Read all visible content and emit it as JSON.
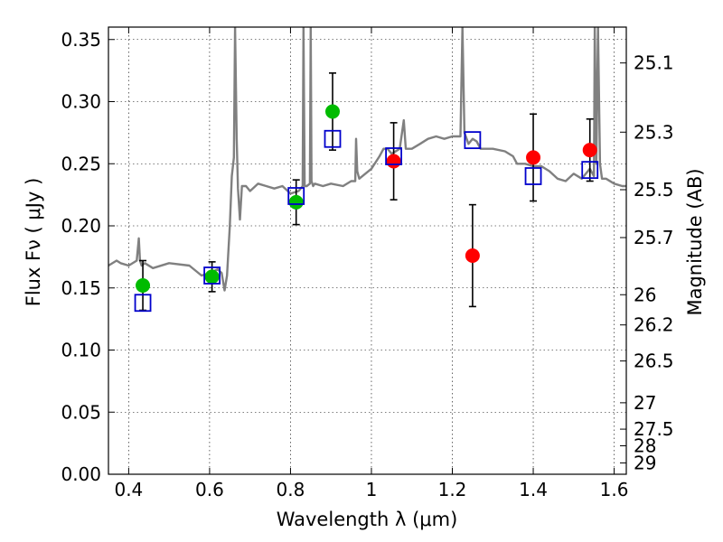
{
  "chart_data": {
    "type": "scatter",
    "title": "",
    "xlabel": "Wavelength  λ (μm)",
    "ylabel": "Flux  Fν  ( μJy )",
    "y2label": "Magnitude (AB)",
    "xlim": [
      0.35,
      1.63
    ],
    "ylim": [
      0.0,
      0.36
    ],
    "grid": true,
    "x_ticks": [
      0.4,
      0.6,
      0.8,
      1.0,
      1.2,
      1.4,
      1.6
    ],
    "x_tick_labels": [
      "0.4",
      "0.6",
      "0.8",
      "1",
      "1.2",
      "1.4",
      "1.6"
    ],
    "y_ticks": [
      0.0,
      0.05,
      0.1,
      0.15,
      0.2,
      0.25,
      0.3,
      0.35
    ],
    "y_tick_labels": [
      "0.00",
      "0.05",
      "0.10",
      "0.15",
      "0.20",
      "0.25",
      "0.30",
      "0.35"
    ],
    "y2_ticks": [
      25.1,
      25.3,
      25.5,
      25.7,
      26,
      26.2,
      26.5,
      27,
      27.5,
      28,
      29
    ],
    "y2_tick_labels": [
      "25.1",
      "25.3",
      "25.5",
      "25.7",
      "26",
      "26.2",
      "26.5",
      "27",
      "27.5",
      "28",
      "29"
    ],
    "series": [
      {
        "kind": "points",
        "marker": "circle",
        "color": "#00bb00",
        "x": [
          0.435,
          0.606,
          0.814,
          0.904
        ],
        "y": [
          0.152,
          0.159,
          0.219,
          0.292
        ],
        "yerr": [
          0.02,
          0.012,
          0.018,
          0.031
        ]
      },
      {
        "kind": "points",
        "marker": "circle",
        "color": "#ff0000",
        "x": [
          1.055,
          1.25,
          1.4,
          1.54
        ],
        "y": [
          0.252,
          0.176,
          0.255,
          0.261
        ],
        "yerr": [
          0.031,
          0.041,
          0.035,
          0.025
        ]
      },
      {
        "kind": "points",
        "marker": "open-square",
        "color": "#0000cc",
        "x": [
          0.435,
          0.606,
          0.814,
          0.904,
          1.055,
          1.25,
          1.4,
          1.54
        ],
        "y": [
          0.138,
          0.16,
          0.224,
          0.27,
          0.256,
          0.269,
          0.24,
          0.245
        ]
      },
      {
        "kind": "line",
        "color": "#808080",
        "x": [
          0.35,
          0.37,
          0.38,
          0.4,
          0.42,
          0.425,
          0.428,
          0.432,
          0.44,
          0.46,
          0.5,
          0.55,
          0.58,
          0.6,
          0.62,
          0.63,
          0.637,
          0.643,
          0.65,
          0.655,
          0.66,
          0.663,
          0.667,
          0.67,
          0.675,
          0.68,
          0.69,
          0.7,
          0.72,
          0.74,
          0.76,
          0.78,
          0.8,
          0.82,
          0.83,
          0.832,
          0.835,
          0.84,
          0.848,
          0.85,
          0.852,
          0.856,
          0.86,
          0.88,
          0.9,
          0.93,
          0.95,
          0.96,
          0.962,
          0.965,
          0.97,
          1.0,
          1.02,
          1.03,
          1.04,
          1.05,
          1.07,
          1.08,
          1.085,
          1.09,
          1.1,
          1.12,
          1.14,
          1.16,
          1.18,
          1.2,
          1.22,
          1.225,
          1.23,
          1.24,
          1.25,
          1.26,
          1.27,
          1.3,
          1.33,
          1.35,
          1.36,
          1.38,
          1.4,
          1.42,
          1.44,
          1.46,
          1.48,
          1.5,
          1.52,
          1.54,
          1.55,
          1.552,
          1.556,
          1.56,
          1.565,
          1.57,
          1.58,
          1.6,
          1.62,
          1.63
        ],
        "y": [
          0.168,
          0.172,
          0.17,
          0.168,
          0.172,
          0.19,
          0.172,
          0.168,
          0.17,
          0.166,
          0.17,
          0.168,
          0.16,
          0.162,
          0.165,
          0.162,
          0.148,
          0.16,
          0.2,
          0.24,
          0.255,
          0.36,
          0.27,
          0.23,
          0.205,
          0.232,
          0.232,
          0.228,
          0.234,
          0.232,
          0.23,
          0.232,
          0.226,
          0.228,
          0.232,
          0.36,
          0.232,
          0.232,
          0.234,
          0.36,
          0.236,
          0.232,
          0.234,
          0.232,
          0.234,
          0.232,
          0.236,
          0.236,
          0.27,
          0.244,
          0.238,
          0.246,
          0.256,
          0.262,
          0.262,
          0.258,
          0.262,
          0.285,
          0.262,
          0.262,
          0.262,
          0.266,
          0.27,
          0.272,
          0.27,
          0.272,
          0.272,
          0.36,
          0.275,
          0.266,
          0.27,
          0.268,
          0.262,
          0.262,
          0.26,
          0.256,
          0.25,
          0.25,
          0.248,
          0.248,
          0.244,
          0.238,
          0.236,
          0.242,
          0.238,
          0.246,
          0.24,
          0.36,
          0.25,
          0.36,
          0.25,
          0.238,
          0.238,
          0.234,
          0.232,
          0.232
        ]
      }
    ]
  }
}
